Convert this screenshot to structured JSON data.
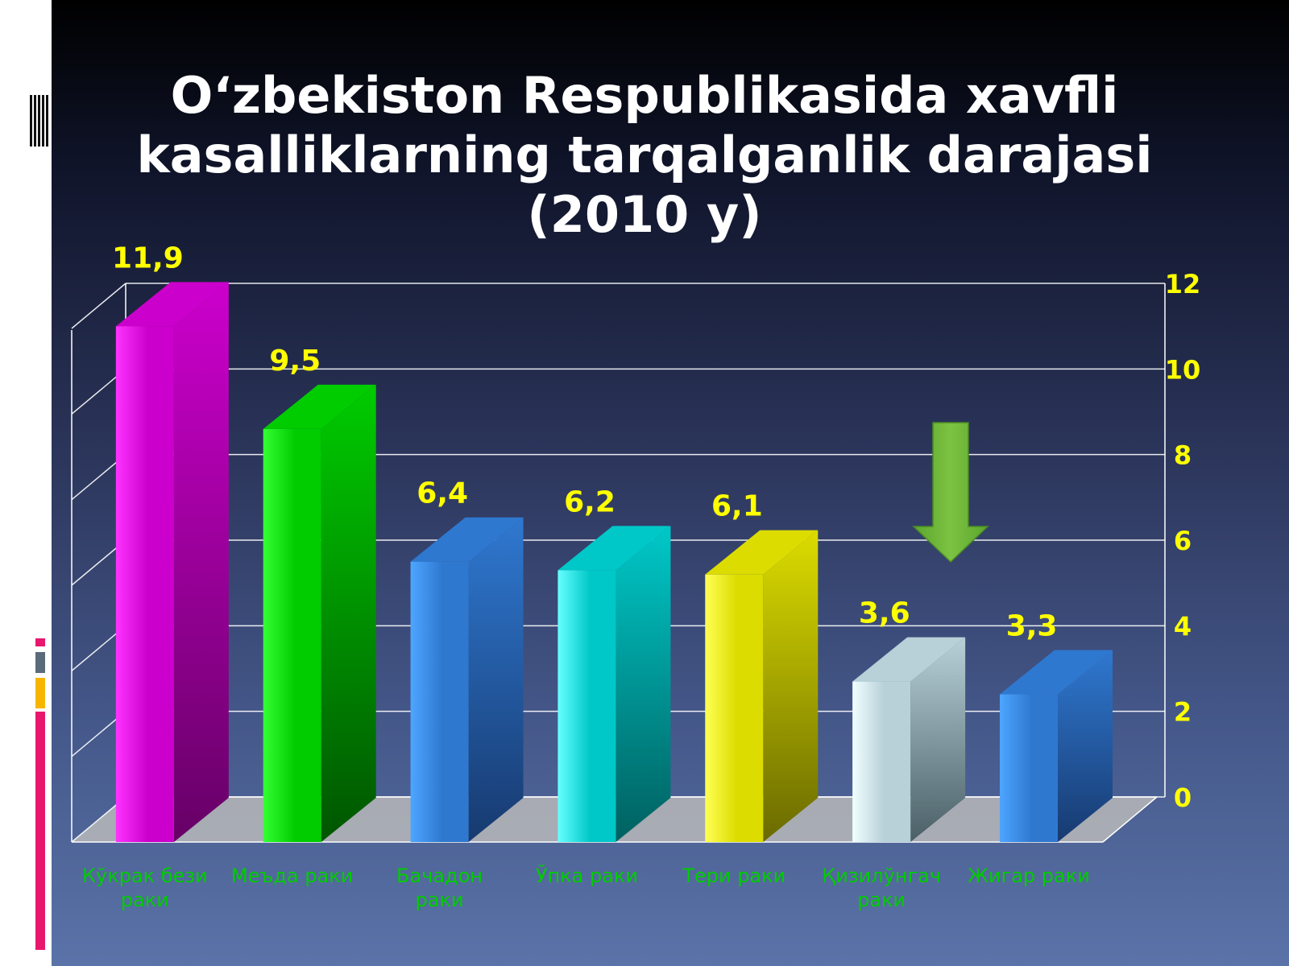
{
  "title_lines": [
    "O‘zbekiston Respublikasida xavfli",
    "kasalliklarning tarqalganlik darajasi",
    "(2010 y)"
  ],
  "colors": {
    "axis_text": "#ffff00",
    "value_label": "#ffff00",
    "category_label": "#00cc00",
    "gridline": "#ffffff",
    "arrow": "#7dc242",
    "sidebar_marks": [
      "#e8176e",
      "#5b6b7a",
      "#f7b500"
    ]
  },
  "chart_data": {
    "type": "bar",
    "title": "O‘zbekiston Respublikasida xavfli kasalliklarning tarqalganlik darajasi (2010 y)",
    "categories": [
      [
        "Кўкрак бези",
        "раки"
      ],
      [
        "Меъда раки"
      ],
      [
        "Бачадон",
        "раки"
      ],
      [
        "Ўпка раки"
      ],
      [
        "Тери раки"
      ],
      [
        "Қизилўнгач",
        "раки"
      ],
      [
        "Жигар раки"
      ]
    ],
    "values": [
      11.9,
      9.5,
      6.4,
      6.2,
      6.1,
      3.6,
      3.3
    ],
    "value_labels": [
      "11,9",
      "9,5",
      "6,4",
      "6,2",
      "6,1",
      "3,6",
      "3,3"
    ],
    "bar_colors": [
      [
        "#ff33ff",
        "#cc00cc",
        "#660066"
      ],
      [
        "#33ff33",
        "#00cc00",
        "#005500"
      ],
      [
        "#4da6ff",
        "#2f78d0",
        "#173a70"
      ],
      [
        "#66ffff",
        "#00c8c8",
        "#006060"
      ],
      [
        "#ffff55",
        "#dcdc00",
        "#6a6a00"
      ],
      [
        "#f0ffff",
        "#b8d0d8",
        "#4a5f66"
      ],
      [
        "#4da6ff",
        "#2f78d0",
        "#173a70"
      ]
    ],
    "y_ticks": [
      "0",
      "2",
      "4",
      "6",
      "8",
      "10",
      "12"
    ],
    "ylim": [
      0,
      12
    ],
    "xlabel": "",
    "ylabel": "",
    "grid": true,
    "legend": "none",
    "y_axis_side": "right",
    "three_d": true
  }
}
